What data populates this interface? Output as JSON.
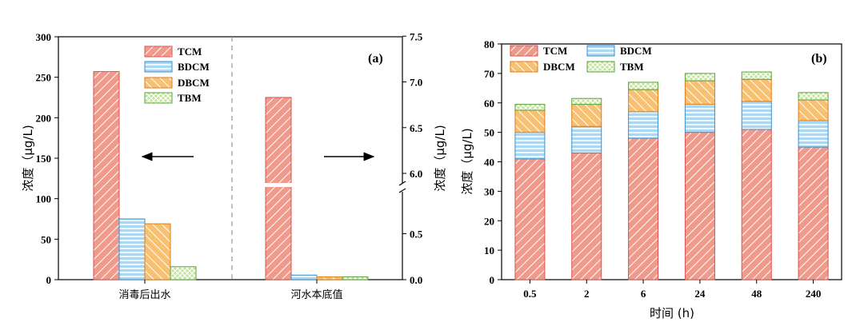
{
  "colors": {
    "tcm_fill": "#ef9a8a",
    "tcm_stroke": "#d9534f",
    "bdcm_fill": "#a9d8f5",
    "bdcm_stroke": "#3a8fd0",
    "dbcm_fill": "#f8c071",
    "dbcm_stroke": "#e07b1a",
    "tbm_fill": "#c2e39b",
    "tbm_stroke": "#5aa33a"
  },
  "chart_data": [
    {
      "type": "bar",
      "panel_label": "(a)",
      "ylabel_left": "浓度（μg/L)",
      "ylabel_right": "浓度（μg/L)",
      "categories": [
        "消毒后出水",
        "河水本底值"
      ],
      "left_axis": {
        "ylim": [
          0,
          300
        ],
        "ticks": [
          "0",
          "50",
          "100",
          "150",
          "200",
          "250",
          "300"
        ]
      },
      "right_axis": {
        "lower_ticks": [
          "0.0",
          "0.5"
        ],
        "upper_ticks": [
          "6.0",
          "6.5",
          "7.0",
          "7.5"
        ]
      },
      "series": [
        {
          "name": "TCM",
          "values": [
            257,
            6.83
          ]
        },
        {
          "name": "BDCM",
          "values": [
            75,
            0.05
          ]
        },
        {
          "name": "DBCM",
          "values": [
            69,
            0.03
          ]
        },
        {
          "name": "TBM",
          "values": [
            16,
            0.03
          ]
        }
      ],
      "arrows": [
        "left-axis",
        "right-axis"
      ]
    },
    {
      "type": "bar",
      "stacked": true,
      "panel_label": "(b)",
      "xlabel": "时间 (h)",
      "ylabel": "浓度（μg/L)",
      "ylim": [
        0,
        80
      ],
      "yticks": [
        "0",
        "10",
        "20",
        "30",
        "40",
        "50",
        "60",
        "70",
        "80"
      ],
      "categories": [
        "0.5",
        "2",
        "6",
        "24",
        "48",
        "240"
      ],
      "series": [
        {
          "name": "TCM",
          "values": [
            41,
            43,
            48,
            50,
            51,
            45
          ]
        },
        {
          "name": "BDCM",
          "values": [
            9,
            9,
            9,
            9.5,
            9.5,
            9
          ]
        },
        {
          "name": "DBCM",
          "values": [
            7.5,
            7.5,
            7.5,
            8,
            7.5,
            7
          ]
        },
        {
          "name": "TBM",
          "values": [
            2,
            2,
            2.5,
            2.5,
            2.5,
            2.5
          ]
        }
      ]
    }
  ]
}
